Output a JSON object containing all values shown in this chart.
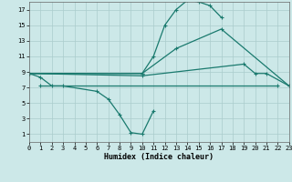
{
  "bg": "#cce8e8",
  "grid_color": "#aacccc",
  "line_color": "#1a7a6e",
  "xlabel": "Humidex (Indice chaleur)",
  "xlim": [
    0,
    23
  ],
  "ylim": [
    0,
    18
  ],
  "xticks": [
    0,
    1,
    2,
    3,
    4,
    5,
    6,
    7,
    8,
    9,
    10,
    11,
    12,
    13,
    14,
    15,
    16,
    17,
    18,
    19,
    20,
    21,
    22,
    23
  ],
  "yticks": [
    1,
    3,
    5,
    7,
    9,
    11,
    13,
    15,
    17
  ],
  "lines": [
    {
      "x": [
        0,
        1,
        2,
        3,
        6,
        7,
        8,
        9,
        10,
        11
      ],
      "y": [
        8.8,
        8.3,
        7.2,
        7.2,
        6.5,
        5.5,
        3.5,
        1.2,
        1.0,
        4.0
      ]
    },
    {
      "x": [
        0,
        10,
        11,
        12,
        13,
        14,
        15,
        16,
        17
      ],
      "y": [
        8.8,
        8.8,
        11.0,
        15.0,
        17.0,
        18.2,
        18.0,
        17.5,
        16.0
      ]
    },
    {
      "x": [
        0,
        10,
        13,
        17,
        23
      ],
      "y": [
        8.8,
        8.8,
        12.0,
        14.5,
        7.2
      ]
    },
    {
      "x": [
        1,
        22
      ],
      "y": [
        7.2,
        7.2
      ]
    },
    {
      "x": [
        0,
        10,
        19,
        20,
        21,
        23
      ],
      "y": [
        8.8,
        8.5,
        10.0,
        8.8,
        8.8,
        7.2
      ]
    }
  ]
}
